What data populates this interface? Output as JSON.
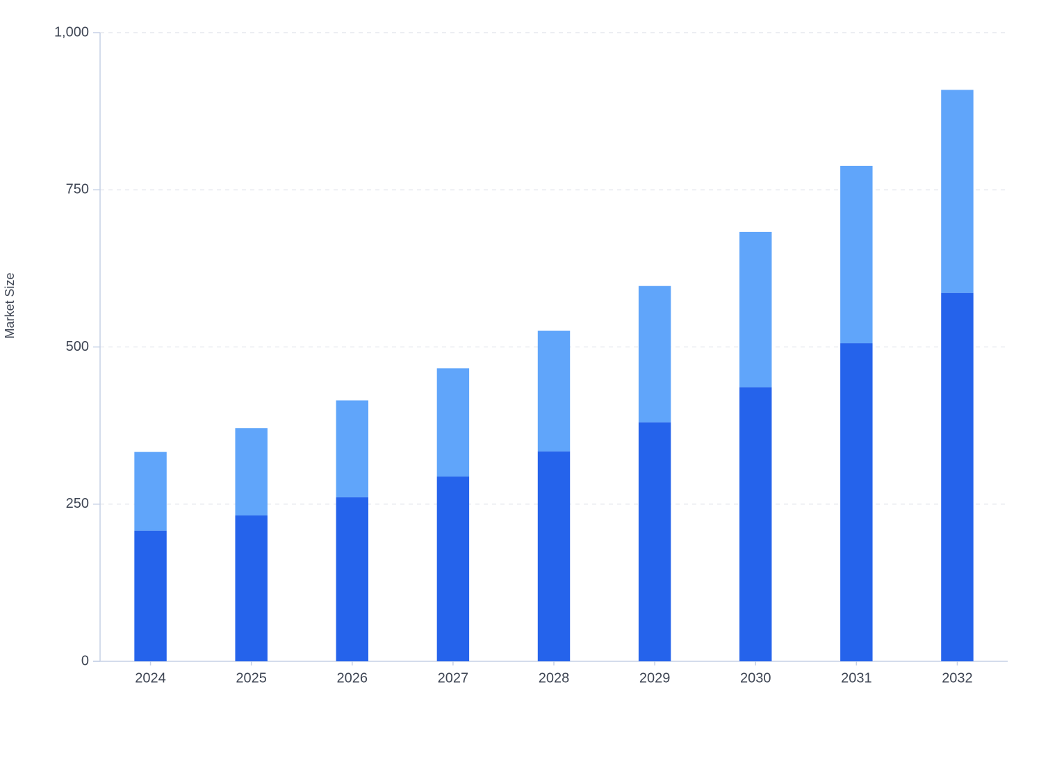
{
  "chart_data": {
    "type": "stacked_bar",
    "y_label": "Market Size",
    "categories": [
      "2024",
      "2025",
      "2026",
      "2027",
      "2028",
      "2029",
      "2030",
      "2031",
      "2032"
    ],
    "series": [
      {
        "color": "#2563eb",
        "values": [
          208,
          232,
          261,
          294,
          334,
          380,
          436,
          506,
          586
        ]
      },
      {
        "color": "#60a5fa",
        "values": [
          125,
          139,
          154,
          172,
          192,
          217,
          247,
          282,
          323
        ]
      }
    ],
    "ylim": [
      0,
      1000
    ],
    "yticks": [
      0,
      250,
      500,
      750,
      {
        "value": 1000,
        "label": "1,000"
      }
    ],
    "grid": true
  }
}
